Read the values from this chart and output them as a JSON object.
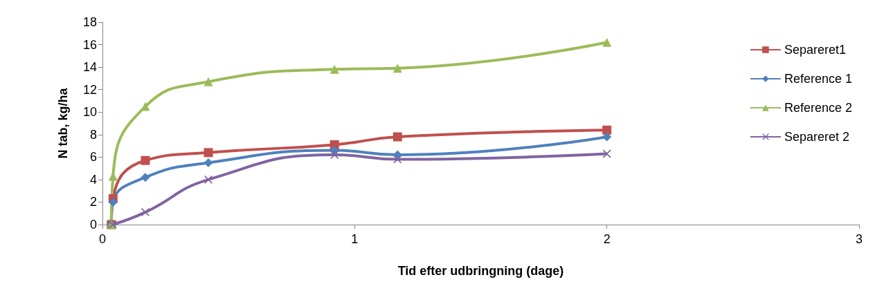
{
  "chart_data": {
    "type": "line",
    "xlabel": "Tid efter udbringning (dage)",
    "ylabel": "N tab, kg/ha",
    "xlim": [
      0,
      3
    ],
    "xticks": [
      0,
      1,
      2,
      3
    ],
    "ylim": [
      0,
      18
    ],
    "yticks": [
      0,
      2,
      4,
      6,
      8,
      10,
      12,
      14,
      16,
      18
    ],
    "grid": false,
    "legend": "right",
    "line_style": "solid",
    "series": [
      {
        "name": "Separeret1",
        "color": "#c0504d",
        "marker": "square",
        "x": [
          0.035,
          0.042,
          0.17,
          0.42,
          0.92,
          1.17,
          2
        ],
        "values": [
          0,
          2.3,
          5.7,
          6.4,
          7.1,
          7.8,
          8.4
        ]
      },
      {
        "name": "Reference 1",
        "color": "#4f81bd",
        "marker": "diamond",
        "x": [
          0.035,
          0.042,
          0.17,
          0.42,
          0.92,
          1.17,
          2
        ],
        "values": [
          0,
          2.0,
          4.2,
          5.5,
          6.6,
          6.2,
          7.8
        ]
      },
      {
        "name": "Reference 2",
        "color": "#9bbb59",
        "marker": "triangle",
        "x": [
          0.035,
          0.042,
          0.17,
          0.42,
          0.92,
          1.17,
          2
        ],
        "values": [
          0,
          4.3,
          10.5,
          12.7,
          13.8,
          13.9,
          16.2
        ]
      },
      {
        "name": "Separeret 2",
        "color": "#8064a2",
        "marker": "cross",
        "x": [
          0.04,
          0.17,
          0.42,
          0.92,
          1.17,
          2
        ],
        "values": [
          0,
          1.1,
          4.0,
          6.2,
          5.8,
          6.3
        ]
      }
    ]
  }
}
